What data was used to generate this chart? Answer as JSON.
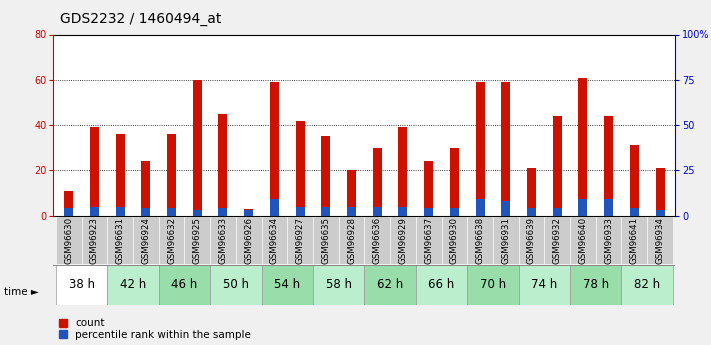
{
  "title": "GDS2232 / 1460494_at",
  "samples": [
    "GSM96630",
    "GSM96923",
    "GSM96631",
    "GSM96924",
    "GSM96632",
    "GSM96925",
    "GSM96633",
    "GSM96926",
    "GSM96634",
    "GSM96927",
    "GSM96635",
    "GSM96928",
    "GSM96636",
    "GSM96929",
    "GSM96637",
    "GSM96930",
    "GSM96638",
    "GSM96931",
    "GSM96639",
    "GSM96932",
    "GSM96640",
    "GSM96933",
    "GSM96641",
    "GSM96934"
  ],
  "count_values": [
    11,
    39,
    36,
    24,
    36,
    60,
    45,
    3,
    59,
    42,
    35,
    20,
    30,
    39,
    24,
    30,
    59,
    59,
    21,
    44,
    61,
    44,
    31,
    21
  ],
  "percentile_values": [
    4,
    5,
    5,
    4,
    4,
    3,
    4,
    3,
    9,
    5,
    5,
    5,
    5,
    5,
    4,
    4,
    9,
    8,
    4,
    4,
    9,
    9,
    4,
    3
  ],
  "time_groups": [
    {
      "label": "38 h",
      "start": 0,
      "end": 2
    },
    {
      "label": "42 h",
      "start": 2,
      "end": 4
    },
    {
      "label": "46 h",
      "start": 4,
      "end": 6
    },
    {
      "label": "50 h",
      "start": 6,
      "end": 8
    },
    {
      "label": "54 h",
      "start": 8,
      "end": 10
    },
    {
      "label": "58 h",
      "start": 10,
      "end": 12
    },
    {
      "label": "62 h",
      "start": 12,
      "end": 14
    },
    {
      "label": "66 h",
      "start": 14,
      "end": 16
    },
    {
      "label": "70 h",
      "start": 16,
      "end": 18
    },
    {
      "label": "74 h",
      "start": 18,
      "end": 20
    },
    {
      "label": "78 h",
      "start": 20,
      "end": 22
    },
    {
      "label": "82 h",
      "start": 22,
      "end": 24
    }
  ],
  "time_bg_colors": [
    "#ffffff",
    "#bbeecc",
    "#99ddaa",
    "#bbeecc",
    "#99ddaa",
    "#bbeecc",
    "#99ddaa",
    "#bbeecc",
    "#99ddaa",
    "#bbeecc",
    "#99ddaa",
    "#bbeecc"
  ],
  "bar_width": 0.35,
  "ylim_left": [
    0,
    80
  ],
  "ylim_right": [
    0,
    100
  ],
  "left_yticks": [
    0,
    20,
    40,
    60,
    80
  ],
  "right_yticklabels": [
    "0",
    "25",
    "50",
    "75",
    "100%"
  ],
  "left_color": "#cc0000",
  "right_color": "#0000cc",
  "bar_color_red": "#cc1100",
  "bar_color_blue": "#2255bb",
  "title_fontsize": 10,
  "tick_fontsize": 7,
  "legend_fontsize": 7.5,
  "time_label_fontsize": 8.5,
  "sample_fontsize": 6.2
}
